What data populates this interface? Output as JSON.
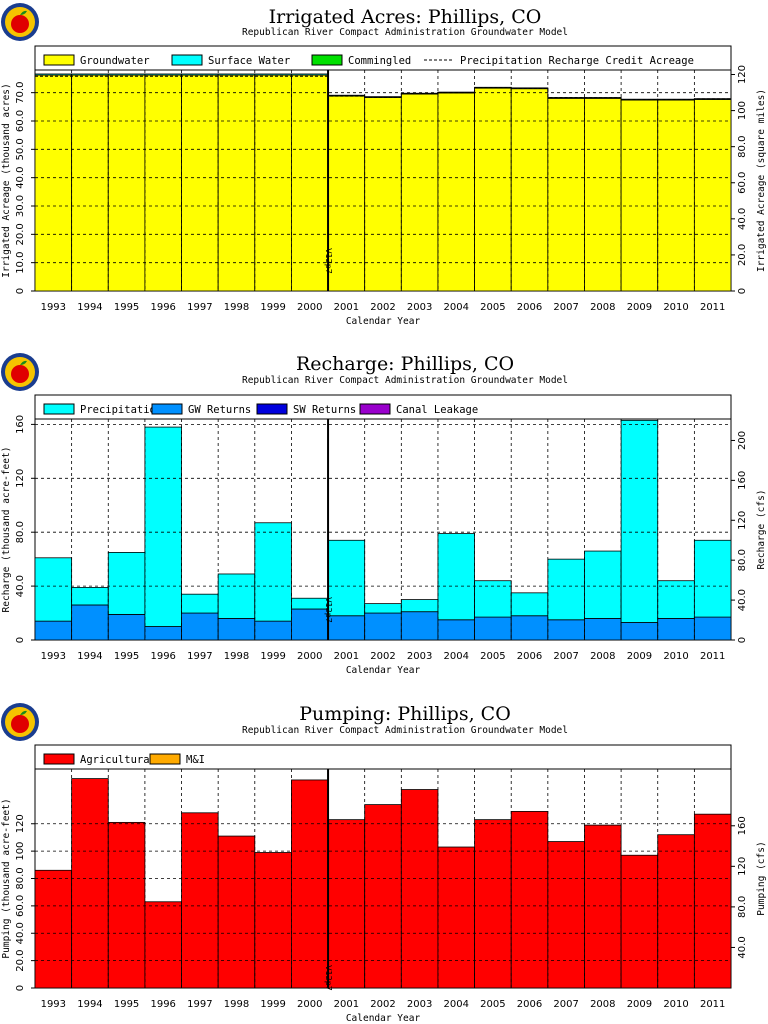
{
  "chart_data": [
    {
      "type": "area",
      "title": "Irrigated Acres: Phillips, CO",
      "subtitle": "Republican River Compact Administration Groundwater Model",
      "xlabel": "Calendar Year",
      "ylabel": "Irrigated Acreage (thousand acres)",
      "ylabel_right": "Irrigated Acreage (square miles)",
      "ylim": [
        0,
        78
      ],
      "yticks": [
        "0",
        "10.0",
        "20.0",
        "30.0",
        "40.0",
        "50.0",
        "60.0",
        "70.0"
      ],
      "yticks_right": [
        "0",
        "20.0",
        "40.0",
        "60.0",
        "80.0",
        "100",
        "120"
      ],
      "categories": [
        "1993",
        "1994",
        "1995",
        "1996",
        "1997",
        "1998",
        "1999",
        "2000",
        "2001",
        "2002",
        "2003",
        "2004",
        "2005",
        "2006",
        "2007",
        "2008",
        "2009",
        "2010",
        "2011"
      ],
      "annotation": {
        "label": "V12p7",
        "year": "2000.5"
      },
      "legend": [
        "Groundwater",
        "Surface Water",
        "Commingled",
        "Precipitation Recharge Credit Acreage"
      ],
      "series": [
        {
          "name": "Groundwater",
          "color": "#ffff00",
          "values": [
            76.2,
            76.2,
            76.2,
            76.2,
            76.2,
            76.2,
            76.2,
            76.2,
            68.8,
            68.3,
            69.5,
            69.9,
            71.6,
            71.4,
            68.0,
            68.0,
            67.4,
            67.4,
            67.6
          ]
        },
        {
          "name": "Surface Water",
          "color": "#00ffff",
          "values": [
            0.4,
            0.4,
            0.4,
            0.4,
            0.4,
            0.4,
            0.4,
            0.4,
            0.3,
            0.3,
            0.3,
            0.3,
            0.3,
            0.3,
            0.3,
            0.3,
            0.3,
            0.3,
            0.3
          ]
        },
        {
          "name": "Commingled",
          "color": "#00e000",
          "values": [
            0,
            0,
            0,
            0,
            0,
            0,
            0,
            0,
            0,
            0,
            0,
            0,
            0,
            0,
            0,
            0,
            0,
            0,
            0
          ]
        },
        {
          "name": "Precipitation Recharge Credit Acreage",
          "color": "#000000",
          "values": [
            75.8,
            75.8,
            75.8,
            75.8,
            75.8,
            75.8,
            75.8,
            75.8,
            68.8,
            68.4,
            69.6,
            70.0,
            71.8,
            71.6,
            68.3,
            68.2,
            67.6,
            67.6,
            67.8
          ]
        }
      ]
    },
    {
      "type": "area",
      "title": "Recharge: Phillips, CO",
      "subtitle": "Republican River Compact Administration Groundwater Model",
      "xlabel": "Calendar Year",
      "ylabel": "Recharge (thousand acre-feet)",
      "ylabel_right": "Recharge (cfs)",
      "ylim": [
        0,
        164
      ],
      "yticks": [
        "0",
        "40.0",
        "80.0",
        "120",
        "160"
      ],
      "yticks_right": [
        "0",
        "40.0",
        "80.0",
        "120",
        "160",
        "200"
      ],
      "categories": [
        "1993",
        "1994",
        "1995",
        "1996",
        "1997",
        "1998",
        "1999",
        "2000",
        "2001",
        "2002",
        "2003",
        "2004",
        "2005",
        "2006",
        "2007",
        "2008",
        "2009",
        "2010",
        "2011"
      ],
      "annotation": {
        "label": "V12p7",
        "year": "2000.5"
      },
      "legend": [
        "Precipitation",
        "GW Returns",
        "SW Returns",
        "Canal Leakage"
      ],
      "series": [
        {
          "name": "GW Returns",
          "color": "#0090ff",
          "values": [
            14,
            26,
            19,
            10,
            20,
            16,
            14,
            23,
            18,
            20,
            21,
            15,
            17,
            18,
            15,
            16,
            13,
            16,
            17
          ]
        },
        {
          "name": "Precipitation",
          "color": "#00ffff",
          "values": [
            47,
            13,
            46,
            148,
            14,
            33,
            73,
            8,
            56,
            7,
            9,
            64,
            27,
            17,
            45,
            50,
            150,
            28,
            57
          ]
        },
        {
          "name": "SW Returns",
          "color": "#0000dd",
          "values": [
            0,
            0,
            0,
            0,
            0,
            0,
            0,
            0,
            0,
            0,
            0,
            0,
            0,
            0,
            0,
            0,
            0,
            0,
            0
          ]
        },
        {
          "name": "Canal Leakage",
          "color": "#9900cc",
          "values": [
            0,
            0,
            0,
            0,
            0,
            0,
            0,
            0,
            0,
            0,
            0,
            0,
            0,
            0,
            0,
            0,
            0,
            0,
            0
          ]
        }
      ]
    },
    {
      "type": "area",
      "title": "Pumping: Phillips, CO",
      "subtitle": "Republican River Compact Administration Groundwater Model",
      "xlabel": "Calendar Year",
      "ylabel": "Pumping (thousand acre-feet)",
      "ylabel_right": "Pumping (cfs)",
      "ylim": [
        0,
        160
      ],
      "yticks": [
        "0",
        "20.0",
        "40.0",
        "60.0",
        "80.0",
        "100",
        "120"
      ],
      "yticks_right": [
        "40.0",
        "80.0",
        "120",
        "160"
      ],
      "categories": [
        "1993",
        "1994",
        "1995",
        "1996",
        "1997",
        "1998",
        "1999",
        "2000",
        "2001",
        "2002",
        "2003",
        "2004",
        "2005",
        "2006",
        "2007",
        "2008",
        "2009",
        "2010",
        "2011"
      ],
      "annotation": {
        "label": "V12p7",
        "year": "2000.5"
      },
      "legend": [
        "Agricultural",
        "M&I"
      ],
      "series": [
        {
          "name": "Agricultural",
          "color": "#ff0000",
          "values": [
            86,
            153,
            121,
            63,
            128,
            111,
            99,
            152,
            123,
            134,
            145,
            103,
            123,
            129,
            107,
            119,
            97,
            112,
            127
          ]
        },
        {
          "name": "M&I",
          "color": "#ffaa00",
          "values": [
            0,
            0,
            0,
            0,
            0,
            0,
            0,
            0,
            0,
            0,
            0,
            0,
            0,
            0,
            0,
            0,
            0,
            0,
            0
          ]
        }
      ]
    }
  ]
}
